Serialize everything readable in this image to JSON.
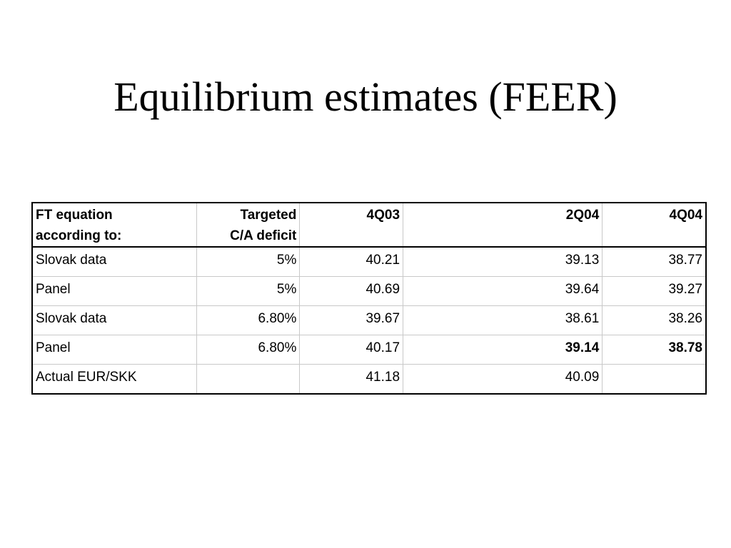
{
  "title": "Equilibrium estimates (FEER)",
  "table": {
    "headers": {
      "label_line1": "FT equation",
      "label_line2": "according to:",
      "target_line1": "Targeted",
      "target_line2": "C/A deficit",
      "q1": "4Q03",
      "q2": "2Q04",
      "q3": "4Q04"
    },
    "rows": [
      {
        "label": "Slovak data",
        "target": "5%",
        "q1": "40.21",
        "q2": "39.13",
        "q3": "38.77"
      },
      {
        "label": "Panel",
        "target": "5%",
        "q1": "40.69",
        "q2": "39.64",
        "q3": "39.27"
      },
      {
        "label": "Slovak data",
        "target": "6.80%",
        "q1": "39.67",
        "q2": "38.61",
        "q3": "38.26"
      },
      {
        "label": "Panel",
        "target": "6.80%",
        "q1": "40.17",
        "q2": "39.14",
        "q3": "38.78"
      },
      {
        "label": "Actual EUR/SKK",
        "target": "",
        "q1": "41.18",
        "q2": "40.09",
        "q3": ""
      }
    ]
  }
}
